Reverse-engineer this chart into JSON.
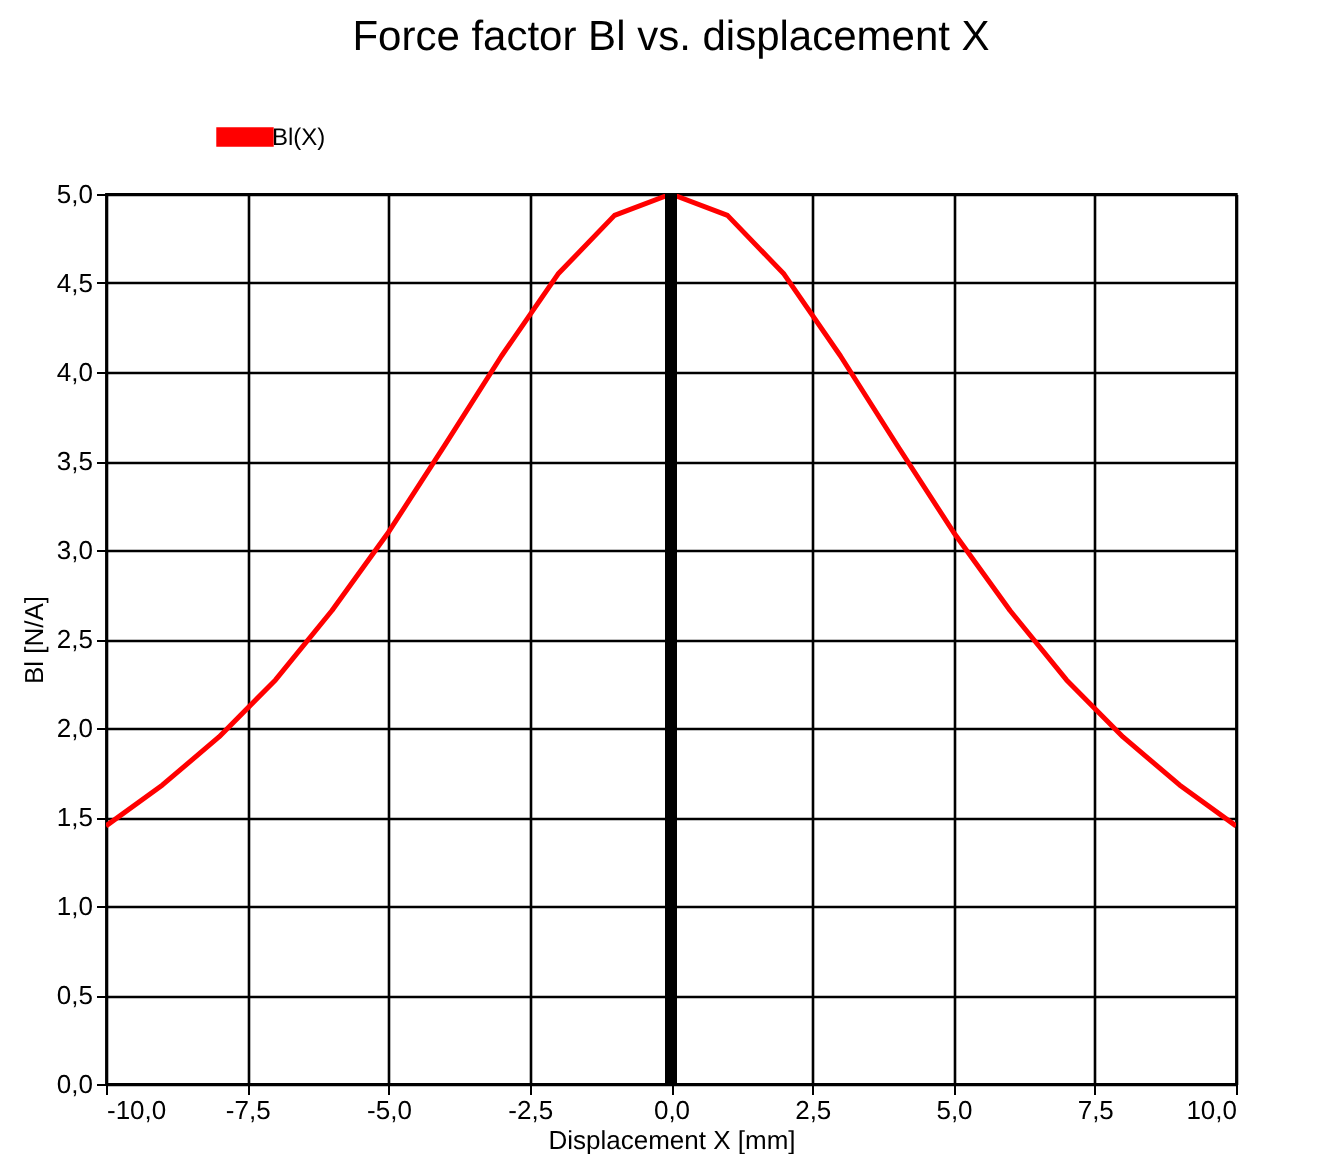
{
  "chart_data": {
    "type": "line",
    "title": "Force factor Bl vs. displacement X",
    "xlabel": "Displacement X [mm]",
    "ylabel": "Bl  [N/A]",
    "x": [
      -10,
      -9,
      -8,
      -7,
      -6,
      -5,
      -4,
      -3,
      -2,
      -1,
      0,
      1,
      2,
      3,
      4,
      5,
      6,
      7,
      8,
      9,
      10
    ],
    "series": [
      {
        "name": "Bl(X)",
        "color": "#ff0000",
        "values": [
          1.45,
          1.68,
          1.95,
          2.27,
          2.66,
          3.1,
          3.59,
          4.09,
          4.55,
          4.88,
          5.0,
          4.88,
          4.55,
          4.09,
          3.59,
          3.1,
          2.66,
          2.27,
          1.95,
          1.68,
          1.45
        ]
      }
    ],
    "xlim": [
      -10,
      10
    ],
    "ylim": [
      0,
      5
    ],
    "xticks": [
      {
        "value": -10,
        "label": "-10,0"
      },
      {
        "value": -7.5,
        "label": "-7,5"
      },
      {
        "value": -5,
        "label": "-5,0"
      },
      {
        "value": -2.5,
        "label": "-2,5"
      },
      {
        "value": 0,
        "label": "0,0"
      },
      {
        "value": 2.5,
        "label": "2,5"
      },
      {
        "value": 5,
        "label": "5,0"
      },
      {
        "value": 7.5,
        "label": "7,5"
      },
      {
        "value": 10,
        "label": "10,0"
      }
    ],
    "yticks": [
      {
        "value": 0,
        "label": "0,0"
      },
      {
        "value": 0.5,
        "label": "0,5"
      },
      {
        "value": 1,
        "label": "1,0"
      },
      {
        "value": 1.5,
        "label": "1,5"
      },
      {
        "value": 2,
        "label": "2,0"
      },
      {
        "value": 2.5,
        "label": "2,5"
      },
      {
        "value": 3,
        "label": "3,0"
      },
      {
        "value": 3.5,
        "label": "3,5"
      },
      {
        "value": 4,
        "label": "4,0"
      },
      {
        "value": 4.5,
        "label": "4,5"
      },
      {
        "value": 5,
        "label": "5,0"
      }
    ],
    "ref_lines": [
      {
        "axis": "x",
        "value": 0,
        "color": "#000000"
      }
    ],
    "grid": true,
    "legend": "top left",
    "marker": "none",
    "line_style": "solid"
  }
}
